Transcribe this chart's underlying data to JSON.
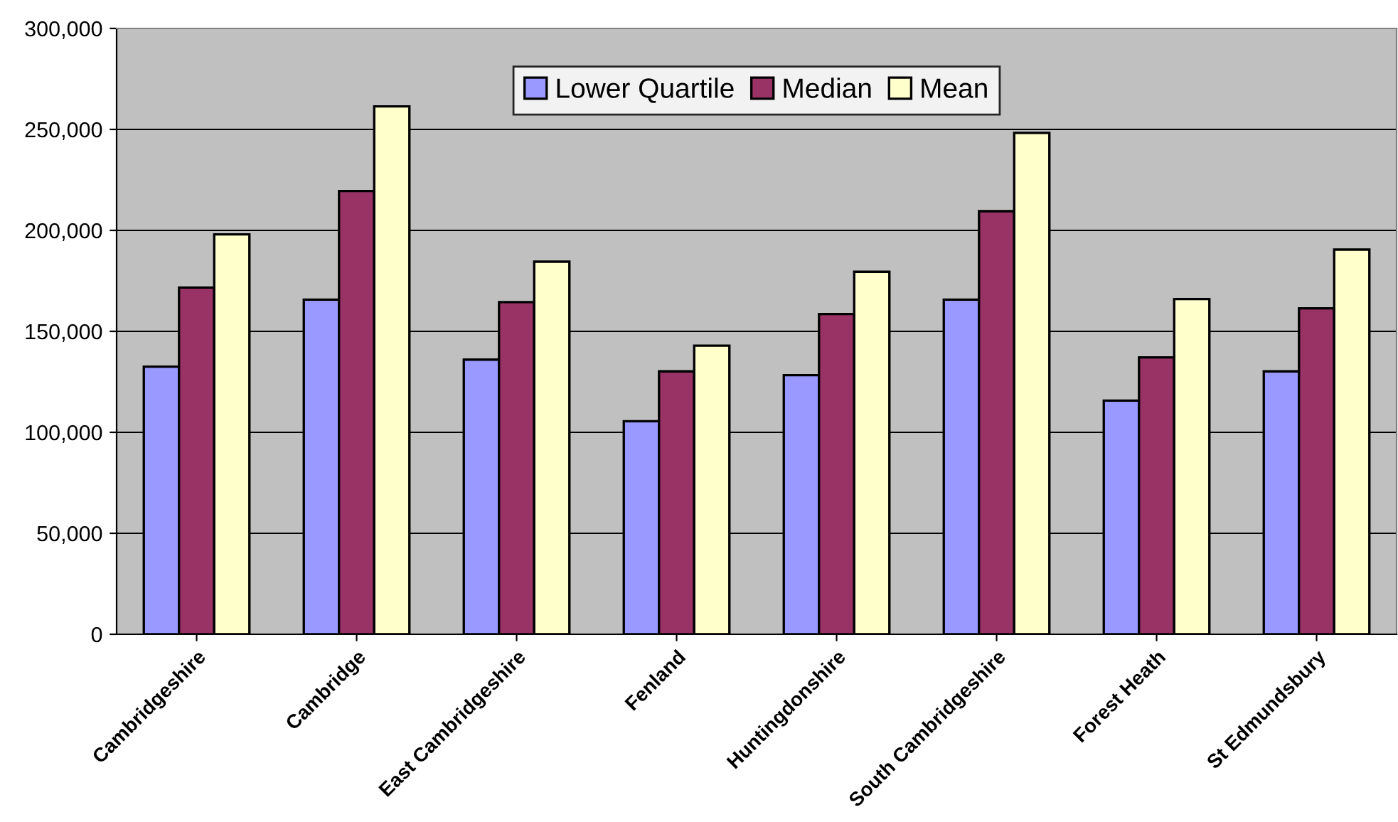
{
  "chart_data": {
    "type": "bar",
    "categories": [
      "Cambridgeshire",
      "Cambridge",
      "East Cambridgeshire",
      "Fenland",
      "Huntingdonshire",
      "South Cambridgeshire",
      "Forest Heath",
      "St Edmundsbury"
    ],
    "series": [
      {
        "name": "Lower Quartile",
        "color": "#9999ff",
        "values": [
          132500,
          165700,
          136000,
          105500,
          128300,
          165700,
          115700,
          130200
        ]
      },
      {
        "name": "Median",
        "color": "#993366",
        "values": [
          171700,
          219500,
          164500,
          130200,
          158600,
          209500,
          137100,
          161400
        ]
      },
      {
        "name": "Mean",
        "color": "#ffffcc",
        "values": [
          198000,
          261400,
          184500,
          142900,
          179500,
          248300,
          166000,
          190500
        ]
      }
    ],
    "ylim": [
      0,
      300000
    ],
    "yticks": [
      {
        "value": 0,
        "label": "0"
      },
      {
        "value": 50000,
        "label": "50,000"
      },
      {
        "value": 100000,
        "label": "100,000"
      },
      {
        "value": 150000,
        "label": "150,000"
      },
      {
        "value": 200000,
        "label": "200,000"
      },
      {
        "value": 250000,
        "label": "250,000"
      },
      {
        "value": 300000,
        "label": "300,000"
      }
    ],
    "grid": "y",
    "legend": "top"
  }
}
